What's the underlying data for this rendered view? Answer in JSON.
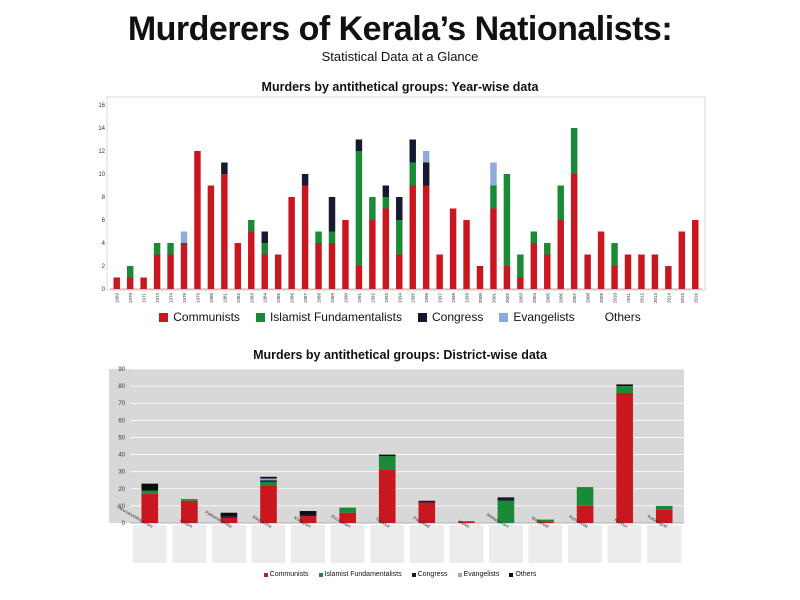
{
  "page": {
    "title": "Murderers of Kerala’s Nationalists:",
    "subtitle": "Statistical Data at a Glance"
  },
  "colors": {
    "Communists": "#c8171e",
    "Islamist Fundamentalists": "#1a8a37",
    "Congress": "#151a30",
    "Evangelists": "#8eaadb",
    "Others": "#0d0d0d"
  },
  "chart_data": [
    {
      "type": "bar",
      "stacked": true,
      "title": "Murders by antithetical groups: Year-wise data",
      "xlabel": "",
      "ylabel": "",
      "ylim": [
        0,
        16
      ],
      "yticks": [
        0,
        2,
        4,
        6,
        8,
        10,
        12,
        14,
        16
      ],
      "grid": false,
      "legend_position": "bottom",
      "categories": [
        "1969",
        "1970",
        "1971",
        "1973",
        "1974",
        "1978",
        "1979",
        "1980",
        "1981",
        "1982",
        "1983",
        "1984",
        "1985",
        "1986",
        "1987",
        "1988",
        "1989",
        "1990",
        "1991",
        "1992",
        "1993",
        "1994",
        "1995",
        "1996",
        "1997",
        "1998",
        "1999",
        "2000",
        "2001",
        "2002",
        "2003",
        "2004",
        "2005",
        "2006",
        "2007",
        "2008",
        "2009",
        "2010",
        "2011",
        "2012",
        "2013",
        "2014",
        "2015",
        "2016"
      ],
      "series": [
        {
          "name": "Communists",
          "values": [
            1,
            1,
            1,
            3,
            3,
            4,
            12,
            9,
            10,
            4,
            5,
            3,
            3,
            8,
            9,
            4,
            4,
            6,
            2,
            6,
            7,
            3,
            9,
            9,
            3,
            7,
            6,
            2,
            7,
            2,
            1,
            4,
            3,
            6,
            10,
            3,
            5,
            2,
            3,
            3,
            3,
            2,
            5,
            6
          ]
        },
        {
          "name": "Islamist Fundamentalists",
          "values": [
            0,
            1,
            0,
            1,
            1,
            0,
            0,
            0,
            0,
            0,
            1,
            1,
            0,
            0,
            0,
            1,
            1,
            0,
            10,
            2,
            1,
            3,
            2,
            0,
            0,
            0,
            0,
            0,
            2,
            8,
            2,
            1,
            1,
            3,
            4,
            0,
            0,
            2,
            0,
            0,
            0,
            0,
            0,
            0
          ]
        },
        {
          "name": "Congress",
          "values": [
            0,
            0,
            0,
            0,
            0,
            0,
            0,
            0,
            1,
            0,
            0,
            1,
            0,
            0,
            1,
            0,
            3,
            0,
            1,
            0,
            1,
            2,
            2,
            2,
            0,
            0,
            0,
            0,
            0,
            0,
            0,
            0,
            0,
            0,
            0,
            0,
            0,
            0,
            0,
            0,
            0,
            0,
            0,
            0
          ]
        },
        {
          "name": "Evangelists",
          "values": [
            0,
            0,
            0,
            0,
            0,
            1,
            0,
            0,
            0,
            0,
            0,
            0,
            0,
            0,
            0,
            0,
            0,
            0,
            0,
            0,
            0,
            0,
            0,
            1,
            0,
            0,
            0,
            0,
            2,
            0,
            0,
            0,
            0,
            0,
            0,
            0,
            0,
            0,
            0,
            0,
            0,
            0,
            0,
            0
          ]
        },
        {
          "name": "Others",
          "values": [
            0,
            0,
            0,
            0,
            0,
            0,
            0,
            0,
            0,
            0,
            0,
            0,
            0,
            0,
            0,
            0,
            0,
            0,
            0,
            0,
            0,
            0,
            0,
            0,
            0,
            0,
            0,
            0,
            0,
            0,
            0,
            0,
            0,
            0,
            0,
            0,
            0,
            0,
            0,
            0,
            0,
            0,
            0,
            0
          ]
        }
      ]
    },
    {
      "type": "bar",
      "stacked": true,
      "title": "Murders by antithetical groups: District-wise data",
      "xlabel": "",
      "ylabel": "",
      "ylim": [
        0,
        90
      ],
      "yticks": [
        0,
        10,
        20,
        30,
        40,
        50,
        60,
        70,
        80,
        90
      ],
      "grid": true,
      "legend_position": "bottom",
      "categories": [
        "Thiruvananthapuram",
        "Kollam",
        "Pathanamthitta",
        "Alappuzha",
        "Kottayam",
        "Ernakulam",
        "Thrissur",
        "Palakkad",
        "Idukki",
        "Malappuram",
        "Wayanad",
        "Kozhikode",
        "Kannur",
        "Kasaragod"
      ],
      "series": [
        {
          "name": "Communists",
          "values": [
            17,
            13,
            3,
            22,
            4,
            6,
            31,
            12,
            1,
            0,
            1,
            10,
            76,
            8
          ]
        },
        {
          "name": "Islamist Fundamentalists",
          "values": [
            2,
            1,
            0,
            2,
            0,
            3,
            8,
            0,
            0,
            13,
            1,
            11,
            4,
            2
          ]
        },
        {
          "name": "Congress",
          "values": [
            0,
            0,
            1,
            1,
            1,
            0,
            0,
            1,
            0,
            2,
            0,
            0,
            0,
            0
          ]
        },
        {
          "name": "Evangelists",
          "values": [
            0,
            0,
            0,
            1,
            0,
            0,
            0,
            0,
            0,
            0,
            0,
            0,
            0,
            0
          ]
        },
        {
          "name": "Others",
          "values": [
            4,
            0,
            2,
            1,
            2,
            0,
            1,
            0,
            0,
            0,
            0,
            0,
            1,
            0
          ]
        }
      ]
    }
  ],
  "legend_labels": [
    "Communists",
    "Islamist Fundamentalists",
    "Congress",
    "Evangelists",
    "Others"
  ]
}
